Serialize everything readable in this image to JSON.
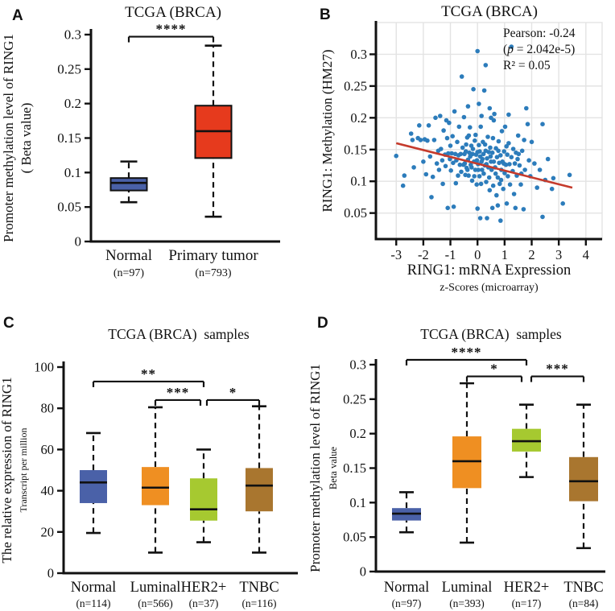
{
  "figure_title": "TCGA BRCA RING1 methylation and expression figure",
  "colors": {
    "normal_blue": "#4A61A8",
    "tumor_red": "#E63A1D",
    "luminal_orange": "#EF8F22",
    "her2_green": "#A6C930",
    "tnbc_brown": "#A9762F",
    "scatter_blue": "#2C7CBB",
    "trend_red": "#C53A2B",
    "grid_gray": "#E3E3E3",
    "ink": "#111111"
  },
  "chart_data": [
    {
      "id": "A",
      "type": "box",
      "panel_label": "A",
      "title": "TCGA (BRCA)",
      "ylabel": "Promoter methylation level of RING1",
      "ylabel_sub": "( Beta value)",
      "ylim": [
        0,
        0.3
      ],
      "yticks": [
        0,
        0.05,
        0.1,
        0.15,
        0.2,
        0.25,
        0.3
      ],
      "ytick_labels": [
        "0",
        "0.05",
        "0.1",
        "0.15",
        "0.2",
        "0.25",
        "0.3"
      ],
      "categories": [
        "Normal",
        "Primary tumor"
      ],
      "n_labels": [
        "(n=97)",
        "(n=793)"
      ],
      "colors": [
        "#4A61A8",
        "#E63A1D"
      ],
      "boxes": [
        {
          "whislo": 0.057,
          "q1": 0.074,
          "med": 0.085,
          "q3": 0.092,
          "whishi": 0.116
        },
        {
          "whislo": 0.036,
          "q1": 0.121,
          "med": 0.16,
          "q3": 0.197,
          "whishi": 0.284
        }
      ],
      "significance": [
        {
          "a": 0,
          "b": 1,
          "y": 0.297,
          "stars": "****"
        }
      ]
    },
    {
      "id": "B",
      "type": "scatter",
      "panel_label": "B",
      "title": "TCGA (BRCA)",
      "xlabel": "RING1: mRNA Expression",
      "xlabel_sub": "z-Scores (microarray)",
      "ylabel": "RING1: Methylation (HM27)",
      "xlim": [
        -3.75,
        4.6
      ],
      "ylim": [
        0.009,
        0.35
      ],
      "xticks": [
        -3,
        -2,
        -1,
        0,
        1,
        2,
        3,
        4
      ],
      "xtick_labels": [
        "-3",
        "-2",
        "-1",
        "0",
        "1",
        "2",
        "3",
        "4"
      ],
      "yticks": [
        0.05,
        0.1,
        0.15,
        0.2,
        0.25,
        0.3
      ],
      "ytick_labels": [
        "0.05",
        "0.1",
        "0.15",
        "0.2",
        "0.25",
        "0.3"
      ],
      "annotation": [
        {
          "text": "Pearson: -0.24"
        },
        {
          "pre": "(",
          "italic": "p",
          "post": " = 2.042e-5)"
        },
        {
          "text": "R² = 0.05"
        }
      ],
      "point_color": "#2C7CBB",
      "grid_color": "#E3E3E3",
      "trend": {
        "x1": -3.0,
        "y1": 0.16,
        "x2": 3.5,
        "y2": 0.09,
        "color": "#C53A2B"
      },
      "points": [
        [
          -3.0,
          0.14
        ],
        [
          -2.75,
          0.093
        ],
        [
          -2.7,
          0.109
        ],
        [
          -2.45,
          0.175
        ],
        [
          -2.4,
          0.165
        ],
        [
          -2.35,
          0.122
        ],
        [
          -2.2,
          0.168
        ],
        [
          -2.15,
          0.188
        ],
        [
          -2.1,
          0.165
        ],
        [
          -2.0,
          0.131
        ],
        [
          -1.95,
          0.166
        ],
        [
          -1.9,
          0.111
        ],
        [
          -1.85,
          0.164
        ],
        [
          -1.8,
          0.188
        ],
        [
          -1.75,
          0.139
        ],
        [
          -1.7,
          0.075
        ],
        [
          -1.65,
          0.107
        ],
        [
          -1.6,
          0.165
        ],
        [
          -1.55,
          0.2
        ],
        [
          -1.5,
          0.128
        ],
        [
          -1.45,
          0.148
        ],
        [
          -1.42,
          0.118
        ],
        [
          -1.38,
          0.203
        ],
        [
          -1.35,
          0.151
        ],
        [
          -1.3,
          0.133
        ],
        [
          -1.28,
          0.096
        ],
        [
          -1.25,
          0.18
        ],
        [
          -1.2,
          0.142
        ],
        [
          -1.18,
          0.124
        ],
        [
          -1.15,
          0.196
        ],
        [
          -1.12,
          0.168
        ],
        [
          -1.1,
          0.058
        ],
        [
          -1.08,
          0.144
        ],
        [
          -1.05,
          0.192
        ],
        [
          -1.02,
          0.135
        ],
        [
          -1.0,
          0.156
        ],
        [
          -0.98,
          0.117
        ],
        [
          -0.95,
          0.144
        ],
        [
          -0.92,
          0.171
        ],
        [
          -0.9,
          0.129
        ],
        [
          -0.88,
          0.06
        ],
        [
          -0.85,
          0.21
        ],
        [
          -0.82,
          0.143
        ],
        [
          -0.8,
          0.097
        ],
        [
          -0.78,
          0.133
        ],
        [
          -0.75,
          0.162
        ],
        [
          -0.72,
          0.109
        ],
        [
          -0.7,
          0.141
        ],
        [
          -0.68,
          0.186
        ],
        [
          -0.65,
          0.126
        ],
        [
          -0.62,
          0.143
        ],
        [
          -0.6,
          0.115
        ],
        [
          -0.58,
          0.265
        ],
        [
          -0.55,
          0.153
        ],
        [
          -0.52,
          0.126
        ],
        [
          -0.5,
          0.201
        ],
        [
          -0.48,
          0.143
        ],
        [
          -0.47,
          0.128
        ],
        [
          -0.45,
          0.11
        ],
        [
          -0.43,
          0.147
        ],
        [
          -0.42,
          0.158
        ],
        [
          -0.4,
          0.121
        ],
        [
          -0.38,
          0.169
        ],
        [
          -0.37,
          0.118
        ],
        [
          -0.35,
          0.218
        ],
        [
          -0.35,
          0.134
        ],
        [
          -0.33,
          0.109
        ],
        [
          -0.32,
          0.172
        ],
        [
          -0.3,
          0.145
        ],
        [
          -0.28,
          0.185
        ],
        [
          -0.27,
          0.139
        ],
        [
          -0.25,
          0.126
        ],
        [
          -0.23,
          0.156
        ],
        [
          -0.22,
          0.122
        ],
        [
          -0.2,
          0.101
        ],
        [
          -0.18,
          0.143
        ],
        [
          -0.17,
          0.151
        ],
        [
          -0.15,
          0.245
        ],
        [
          -0.13,
          0.131
        ],
        [
          -0.12,
          0.108
        ],
        [
          -0.1,
          0.164
        ],
        [
          -0.08,
          0.118
        ],
        [
          -0.07,
          0.173
        ],
        [
          -0.05,
          0.142
        ],
        [
          -0.03,
          0.095
        ],
        [
          -0.02,
          0.133
        ],
        [
          0.0,
          0.305
        ],
        [
          0.0,
          0.146
        ],
        [
          0.0,
          0.057
        ],
        [
          0.02,
          0.127
        ],
        [
          0.03,
          0.118
        ],
        [
          0.05,
          0.222
        ],
        [
          0.05,
          0.157
        ],
        [
          0.07,
          0.108
        ],
        [
          0.08,
          0.147
        ],
        [
          0.1,
          0.042
        ],
        [
          0.1,
          0.139
        ],
        [
          0.12,
          0.186
        ],
        [
          0.13,
          0.096
        ],
        [
          0.15,
          0.203
        ],
        [
          0.15,
          0.131
        ],
        [
          0.17,
          0.118
        ],
        [
          0.18,
          0.135
        ],
        [
          0.2,
          0.162
        ],
        [
          0.22,
          0.143
        ],
        [
          0.23,
          0.112
        ],
        [
          0.25,
          0.243
        ],
        [
          0.27,
          0.125
        ],
        [
          0.28,
          0.158
        ],
        [
          0.3,
          0.283
        ],
        [
          0.3,
          0.148
        ],
        [
          0.32,
          0.099
        ],
        [
          0.33,
          0.127
        ],
        [
          0.35,
          0.042
        ],
        [
          0.35,
          0.136
        ],
        [
          0.38,
          0.17
        ],
        [
          0.4,
          0.122
        ],
        [
          0.42,
          0.146
        ],
        [
          0.43,
          0.106
        ],
        [
          0.45,
          0.215
        ],
        [
          0.45,
          0.086
        ],
        [
          0.47,
          0.153
        ],
        [
          0.48,
          0.139
        ],
        [
          0.5,
          0.131
        ],
        [
          0.5,
          0.2
        ],
        [
          0.52,
          0.118
        ],
        [
          0.55,
          0.145
        ],
        [
          0.55,
          0.058
        ],
        [
          0.57,
          0.168
        ],
        [
          0.58,
          0.093
        ],
        [
          0.6,
          0.196
        ],
        [
          0.6,
          0.131
        ],
        [
          0.62,
          0.206
        ],
        [
          0.65,
          0.122
        ],
        [
          0.67,
          0.112
        ],
        [
          0.68,
          0.152
        ],
        [
          0.7,
          0.078
        ],
        [
          0.72,
          0.138
        ],
        [
          0.75,
          0.062
        ],
        [
          0.75,
          0.106
        ],
        [
          0.77,
          0.148
        ],
        [
          0.78,
          0.163
        ],
        [
          0.8,
          0.129
        ],
        [
          0.82,
          0.096
        ],
        [
          0.85,
          0.038
        ],
        [
          0.85,
          0.141
        ],
        [
          0.87,
          0.102
        ],
        [
          0.88,
          0.118
        ],
        [
          0.9,
          0.179
        ],
        [
          0.92,
          0.131
        ],
        [
          0.95,
          0.088
        ],
        [
          0.97,
          0.128
        ],
        [
          0.98,
          0.147
        ],
        [
          1.0,
          0.113
        ],
        [
          1.02,
          0.186
        ],
        [
          1.05,
          0.126
        ],
        [
          1.07,
          0.155
        ],
        [
          1.08,
          0.065
        ],
        [
          1.1,
          0.142
        ],
        [
          1.12,
          0.108
        ],
        [
          1.15,
          0.205
        ],
        [
          1.15,
          0.16
        ],
        [
          1.18,
          0.127
        ],
        [
          1.2,
          0.095
        ],
        [
          1.25,
          0.312
        ],
        [
          1.25,
          0.138
        ],
        [
          1.3,
          0.116
        ],
        [
          1.32,
          0.151
        ],
        [
          1.35,
          0.08
        ],
        [
          1.38,
          0.128
        ],
        [
          1.4,
          0.058
        ],
        [
          1.42,
          0.145
        ],
        [
          1.45,
          0.109
        ],
        [
          1.48,
          0.135
        ],
        [
          1.5,
          0.172
        ],
        [
          1.52,
          0.143
        ],
        [
          1.55,
          0.125
        ],
        [
          1.6,
          0.095
        ],
        [
          1.62,
          0.112
        ],
        [
          1.65,
          0.148
        ],
        [
          1.7,
          0.056
        ],
        [
          1.72,
          0.165
        ],
        [
          1.75,
          0.118
        ],
        [
          1.8,
          0.215
        ],
        [
          1.85,
          0.19
        ],
        [
          1.9,
          0.133
        ],
        [
          1.95,
          0.108
        ],
        [
          2.0,
          0.162
        ],
        [
          2.1,
          0.128
        ],
        [
          2.2,
          0.09
        ],
        [
          2.3,
          0.118
        ],
        [
          2.4,
          0.044
        ],
        [
          2.4,
          0.19
        ],
        [
          2.5,
          0.102
        ],
        [
          2.6,
          0.135
        ],
        [
          2.75,
          0.088
        ],
        [
          2.8,
          0.105
        ],
        [
          3.15,
          0.065
        ],
        [
          3.4,
          0.11
        ]
      ]
    },
    {
      "id": "C",
      "type": "box",
      "panel_label": "C",
      "title": "TCGA (BRCA)  samples",
      "ylabel": "The relative expression of RING1",
      "ylabel_sub": "Transcript per million",
      "ylim": [
        0,
        100
      ],
      "yticks": [
        0,
        20,
        40,
        60,
        80,
        100
      ],
      "ytick_labels": [
        "0",
        "20",
        "40",
        "60",
        "80",
        "100"
      ],
      "categories": [
        "Normal",
        "Luminal",
        "HER2+",
        "TNBC"
      ],
      "n_labels": [
        "(n=114)",
        "(n=566)",
        "(n=37)",
        "(n=116)"
      ],
      "colors": [
        "#4A61A8",
        "#EF8F22",
        "#A6C930",
        "#A9762F"
      ],
      "boxes": [
        {
          "whislo": 19.5,
          "q1": 34,
          "med": 44,
          "q3": 50,
          "whishi": 68
        },
        {
          "whislo": 10,
          "q1": 33,
          "med": 41.5,
          "q3": 51.5,
          "whishi": 80.5
        },
        {
          "whislo": 15,
          "q1": 25.5,
          "med": 31,
          "q3": 46,
          "whishi": 60
        },
        {
          "whislo": 10,
          "q1": 30,
          "med": 42.5,
          "q3": 51,
          "whishi": 81
        }
      ],
      "significance": [
        {
          "a": 0,
          "b": 2,
          "y": 93,
          "stars": "**"
        },
        {
          "a": 1,
          "b": 2,
          "y": 84,
          "stars": "***"
        },
        {
          "a": 2,
          "b": 3,
          "y": 84,
          "stars": "*"
        }
      ]
    },
    {
      "id": "D",
      "type": "box",
      "panel_label": "D",
      "title": "TCGA (BRCA)  samples",
      "ylabel": "Promoter methylation level of RING1",
      "ylabel_sub": "Beta value",
      "ylim": [
        0,
        0.3
      ],
      "yticks": [
        0,
        0.05,
        0.1,
        0.15,
        0.2,
        0.25,
        0.3
      ],
      "ytick_labels": [
        "0",
        "0.05",
        "0.1",
        "0.15",
        "0.2",
        "0.25",
        "0.3"
      ],
      "categories": [
        "Normal",
        "Luminal",
        "HER2+",
        "TNBC"
      ],
      "n_labels": [
        "(n=97)",
        "(n=393)",
        "(n=17)",
        "(n=84)"
      ],
      "colors": [
        "#4A61A8",
        "#EF8F22",
        "#A6C930",
        "#A9762F"
      ],
      "boxes": [
        {
          "whislo": 0.057,
          "q1": 0.074,
          "med": 0.084,
          "q3": 0.092,
          "whishi": 0.115
        },
        {
          "whislo": 0.042,
          "q1": 0.121,
          "med": 0.16,
          "q3": 0.196,
          "whishi": 0.273
        },
        {
          "whislo": 0.137,
          "q1": 0.174,
          "med": 0.189,
          "q3": 0.207,
          "whishi": 0.242
        },
        {
          "whislo": 0.034,
          "q1": 0.102,
          "med": 0.131,
          "q3": 0.166,
          "whishi": 0.242
        }
      ],
      "significance": [
        {
          "a": 0,
          "b": 2,
          "y": 0.307,
          "stars": "****"
        },
        {
          "a": 1,
          "b": 2,
          "y": 0.283,
          "stars": "*"
        },
        {
          "a": 2,
          "b": 3,
          "y": 0.283,
          "stars": "***"
        }
      ]
    }
  ]
}
